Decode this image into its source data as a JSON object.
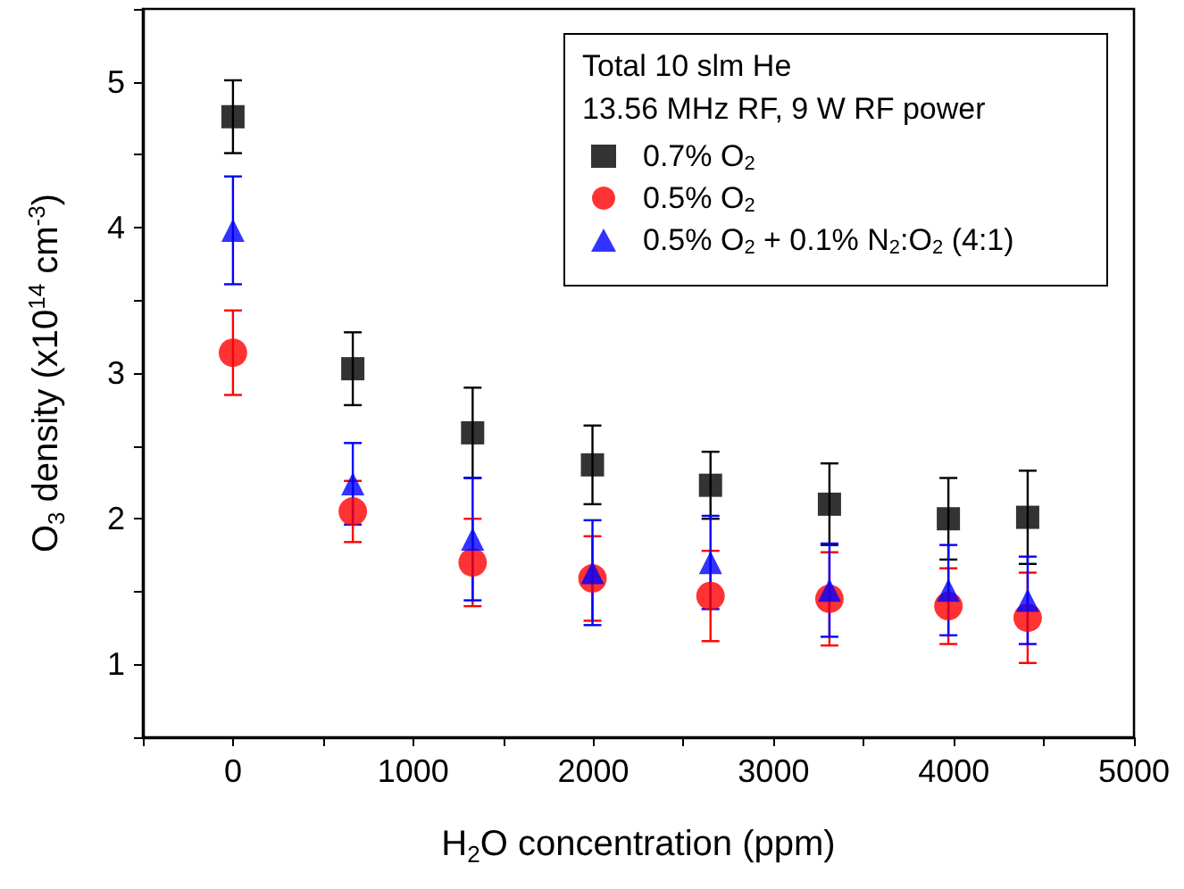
{
  "chart_data": {
    "type": "scatter",
    "xlabel": "H$_{2}$O concentration (ppm)",
    "ylabel": "O$_{3}$ density (x10$^{14}$ cm$^{-3}$)",
    "legend_title": "Total 10 slm He\n13.56 MHz RF, 9 W RF power",
    "x": [
      0,
      665,
      1330,
      1995,
      2650,
      3310,
      3970,
      4410
    ],
    "series": [
      {
        "name": "0.7% O$_{2}$",
        "color": "#000000",
        "marker": "square",
        "values": [
          4.76,
          3.03,
          2.59,
          2.37,
          2.23,
          2.1,
          2.0,
          2.01
        ],
        "errors": [
          0.25,
          0.25,
          0.31,
          0.27,
          0.23,
          0.28,
          0.28,
          0.32
        ]
      },
      {
        "name": "0.5% O$_{2}$",
        "color": "#ff0000",
        "marker": "circle",
        "values": [
          3.14,
          2.05,
          1.7,
          1.59,
          1.47,
          1.45,
          1.4,
          1.32
        ],
        "errors": [
          0.29,
          0.21,
          0.3,
          0.29,
          0.31,
          0.32,
          0.26,
          0.31
        ]
      },
      {
        "name": "0.5% O$_{2}$ + 0.1% N$_{2}$:O$_{2}$ (4:1)",
        "color": "#0000ff",
        "marker": "triangle",
        "values": [
          3.98,
          2.24,
          1.86,
          1.63,
          1.7,
          1.51,
          1.51,
          1.44
        ],
        "errors": [
          0.37,
          0.28,
          0.42,
          0.36,
          0.32,
          0.32,
          0.31,
          0.3
        ]
      }
    ],
    "xlim": [
      -500,
      5000
    ],
    "xticks": [
      {
        "value": -500,
        "label": null
      },
      0,
      {
        "value": 500,
        "label": null
      },
      1000,
      {
        "value": 1500,
        "label": null
      },
      2000,
      {
        "value": 2500,
        "label": null
      },
      3000,
      {
        "value": 3500,
        "label": null
      },
      4000,
      {
        "value": 4500,
        "label": null
      },
      5000
    ],
    "ylim": [
      0.5,
      5.5
    ],
    "yticks": [
      {
        "value": 0.5,
        "label": null
      },
      1,
      {
        "value": 1.5,
        "label": null
      },
      2,
      {
        "value": 2.5,
        "label": null
      },
      3,
      {
        "value": 3.5,
        "label": null
      },
      4,
      {
        "value": 4.5,
        "label": null
      },
      5,
      {
        "value": 5.5,
        "label": null
      }
    ],
    "grid": false,
    "legend": "top right"
  }
}
